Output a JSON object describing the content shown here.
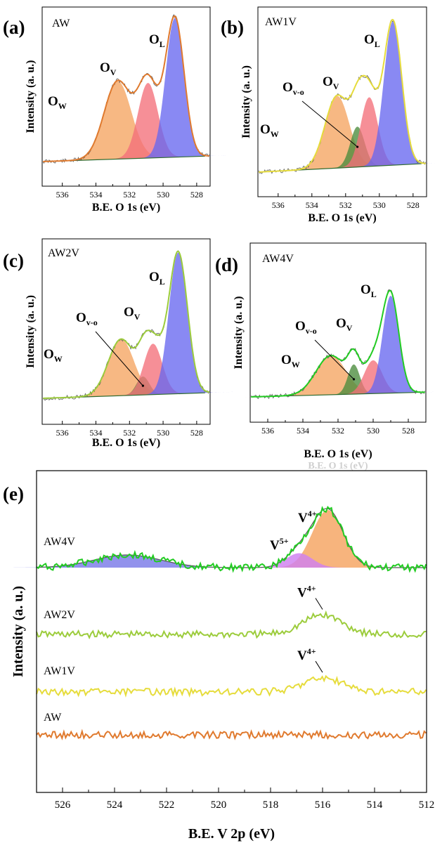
{
  "chart_data": [
    {
      "type": "line",
      "panel": "(a)",
      "sample": "AW",
      "xlabel": "B.E. O 1s (eV)",
      "ylabel": "Intensity (a. u.)",
      "xlim": [
        537.2,
        527.2
      ],
      "x_reversed": true,
      "xticks": [
        536,
        534,
        532,
        530,
        528
      ],
      "colors": {
        "data": "#5a5a5a",
        "fit": "#e07a2e"
      },
      "components": [
        {
          "label": "O",
          "sub": "W",
          "center": 532.7,
          "fwhm": 1.9,
          "height": 0.56,
          "color": "#f5a460"
        },
        {
          "label": "O",
          "sub": "V",
          "center": 530.9,
          "fwhm": 1.4,
          "height": 0.54,
          "color": "#f4707a"
        },
        {
          "label": "O",
          "sub": "L",
          "center": 529.3,
          "fwhm": 1.3,
          "height": 1.0,
          "color": "#6868f0"
        }
      ]
    },
    {
      "type": "line",
      "panel": "(b)",
      "sample": "AW1V",
      "xlabel": "B.E. O 1s (eV)",
      "ylabel": "Intensity (a. u.)",
      "xlim": [
        537.2,
        527.2
      ],
      "x_reversed": true,
      "xticks": [
        536,
        534,
        532,
        530,
        528
      ],
      "colors": {
        "data": "#5a5a5a",
        "fit": "#e6dc3c"
      },
      "components": [
        {
          "label": "O",
          "sub": "W",
          "center": 532.5,
          "fwhm": 1.7,
          "height": 0.5,
          "color": "#f5a460"
        },
        {
          "label": "O",
          "sub": "v-o",
          "center": 531.3,
          "fwhm": 1.0,
          "height": 0.28,
          "color": "#4a8c3c"
        },
        {
          "label": "O",
          "sub": "V",
          "center": 530.6,
          "fwhm": 1.2,
          "height": 0.48,
          "color": "#f4707a"
        },
        {
          "label": "O",
          "sub": "L",
          "center": 529.2,
          "fwhm": 1.25,
          "height": 1.0,
          "color": "#6868f0"
        }
      ]
    },
    {
      "type": "line",
      "panel": "(c)",
      "sample": "AW2V",
      "xlabel": "B.E. O 1s (eV)",
      "ylabel": "Intensity (a. u.)",
      "xlim": [
        537.2,
        527.2
      ],
      "x_reversed": true,
      "xticks": [
        536,
        534,
        532,
        530,
        528
      ],
      "colors": {
        "data": "#5a5a5a",
        "fit": "#9ccc3c"
      },
      "components": [
        {
          "label": "O",
          "sub": "W",
          "center": 532.5,
          "fwhm": 1.8,
          "height": 0.4,
          "color": "#f5a460"
        },
        {
          "label": "O",
          "sub": "v-o",
          "center": 531.2,
          "fwhm": 0.9,
          "height": 0.13,
          "color": "#4a8c3c"
        },
        {
          "label": "O",
          "sub": "V",
          "center": 530.6,
          "fwhm": 1.3,
          "height": 0.36,
          "color": "#f4707a"
        },
        {
          "label": "O",
          "sub": "L",
          "center": 529.1,
          "fwhm": 1.3,
          "height": 1.0,
          "color": "#6868f0"
        }
      ]
    },
    {
      "type": "line",
      "panel": "(d)",
      "sample": "AW4V",
      "xlabel": "B.E. O 1s (eV)",
      "ylabel": "Intensity (a. u.)",
      "xlim": [
        537.0,
        527.0
      ],
      "x_reversed": true,
      "xticks": [
        536,
        534,
        532,
        530,
        528
      ],
      "colors": {
        "data": "#5a5a5a",
        "fit": "#22cc22"
      },
      "components": [
        {
          "label": "O",
          "sub": "W",
          "center": 532.4,
          "fwhm": 2.0,
          "height": 0.33,
          "color": "#f5a460"
        },
        {
          "label": "O",
          "sub": "v-o",
          "center": 531.1,
          "fwhm": 0.8,
          "height": 0.25,
          "color": "#4a8c3c"
        },
        {
          "label": "O",
          "sub": "V",
          "center": 530.0,
          "fwhm": 1.2,
          "height": 0.28,
          "color": "#f4707a"
        },
        {
          "label": "O",
          "sub": "L",
          "center": 529.0,
          "fwhm": 1.1,
          "height": 0.82,
          "color": "#6868f0"
        }
      ]
    },
    {
      "type": "line",
      "panel": "(e)",
      "xlabel": "B.E. V 2p (eV)",
      "ylabel": "Intensity (a. u.)",
      "xlim": [
        527,
        512
      ],
      "x_reversed": true,
      "xticks": [
        526,
        524,
        522,
        520,
        518,
        516,
        514,
        512
      ],
      "series": [
        {
          "name": "AW4V",
          "color": "#22cc22",
          "components": [
            {
              "label": "V",
              "sup": "4+",
              "center": 515.8,
              "fwhm": 1.4,
              "height": 1.0,
              "color": "#f5a460"
            },
            {
              "label": "V",
              "sup": "5+",
              "center": 516.9,
              "fwhm": 1.2,
              "height": 0.25,
              "color": "#d080f0"
            },
            {
              "center": 523.5,
              "fwhm": 3.0,
              "height": 0.22,
              "color": "#7a7ae8"
            }
          ]
        },
        {
          "name": "AW2V",
          "color": "#9ccc3c",
          "peak": {
            "label": "V",
            "sup": "4+",
            "center": 516.0,
            "fwhm": 1.8,
            "height": 0.25
          }
        },
        {
          "name": "AW1V",
          "color": "#e6dc3c",
          "peak": {
            "label": "V",
            "sup": "4+",
            "center": 516.0,
            "fwhm": 1.8,
            "height": 0.18
          }
        },
        {
          "name": "AW",
          "color": "#e07a2e"
        }
      ]
    }
  ],
  "artifact_text": "B.E. O 1s (eV)"
}
